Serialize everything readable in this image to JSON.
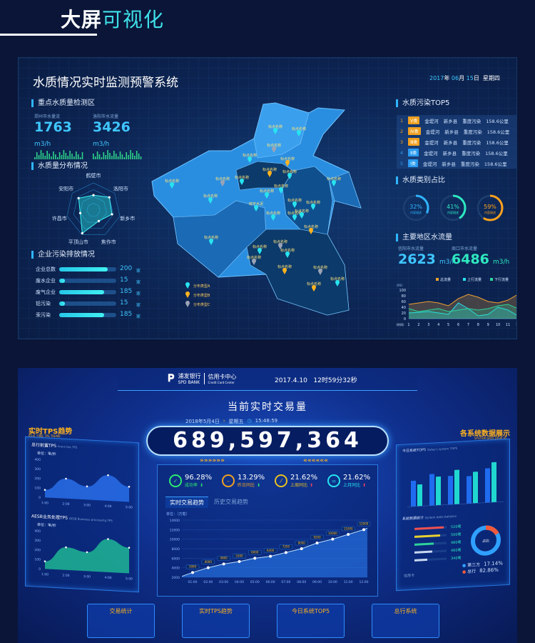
{
  "header": {
    "title_white": "大屏",
    "title_accent": "可视化"
  },
  "water": {
    "title": "水质情况实时监测预警系统",
    "date": {
      "year": "2017",
      "month": "06",
      "day": "15",
      "y_label": "年",
      "m_label": "月",
      "d_label": "日",
      "weekday": "星期四"
    },
    "monitor": {
      "section": "重点水质量检测区",
      "items": [
        {
          "label": "郑州市水量流",
          "value": "1763",
          "unit": "m3/h"
        },
        {
          "label": "洛阳市水流量",
          "value": "3426",
          "unit": "m3/h"
        }
      ]
    },
    "radar": {
      "section": "水质量分布情况",
      "axes": [
        "鹤壁市",
        "洛阳市",
        "新乡市",
        "焦作市",
        "平顶山市",
        "许昌市",
        "安阳市"
      ],
      "values": [
        0.55,
        0.75,
        0.7,
        0.45,
        0.95,
        0.5,
        0.7
      ]
    },
    "emission": {
      "section": "企业污染排放情况",
      "unit": "家",
      "items": [
        {
          "label": "企业总数",
          "value": 200
        },
        {
          "label": "废水企业",
          "value": 15
        },
        {
          "label": "废气企业",
          "value": 185
        },
        {
          "label": "铅污染",
          "value": 15
        },
        {
          "label": "汞污染",
          "value": 185
        }
      ]
    },
    "map": {
      "pins": [
        {
          "label": "标点名称",
          "type": "A"
        },
        {
          "label": "标点名称",
          "type": "A"
        },
        {
          "label": "标点名称",
          "type": "C"
        },
        {
          "label": "标点名称",
          "type": "A"
        },
        {
          "label": "标点名称",
          "type": "B"
        },
        {
          "label": "标点名称",
          "type": "B"
        },
        {
          "label": "标点名称",
          "type": "A"
        },
        {
          "label": "标点名称",
          "type": "A"
        },
        {
          "label": "标点名称",
          "type": "C"
        },
        {
          "label": "标点名称",
          "type": "A"
        },
        {
          "label": "标点名称",
          "type": "A"
        },
        {
          "label": "标点名称",
          "type": "A"
        },
        {
          "label": "标点名称",
          "type": "A"
        },
        {
          "label": "标点名称",
          "type": "A"
        },
        {
          "label": "晓宇水泥",
          "type": "A"
        },
        {
          "label": "标点名称",
          "type": "A"
        },
        {
          "label": "标点名称",
          "type": "A"
        },
        {
          "label": "标点名称",
          "type": "A"
        },
        {
          "label": "标点名称",
          "type": "A"
        },
        {
          "label": "标点名称",
          "type": "A"
        },
        {
          "label": "标点名称",
          "type": "B"
        },
        {
          "label": "标点名称",
          "type": "A"
        },
        {
          "label": "标点名称",
          "type": "A"
        },
        {
          "label": "标点名称",
          "type": "C"
        },
        {
          "label": "标点名称",
          "type": "A"
        },
        {
          "label": "标点名称",
          "type": "C"
        },
        {
          "label": "标点名称",
          "type": "B"
        },
        {
          "label": "标点名称",
          "type": "C"
        },
        {
          "label": "标点名称",
          "type": "B"
        },
        {
          "label": "标点名称",
          "type": "A"
        }
      ],
      "legend": [
        {
          "label": "分布类型A",
          "type": "A"
        },
        {
          "label": "分布类型B",
          "type": "B"
        },
        {
          "label": "分布类型C",
          "type": "C"
        }
      ],
      "colors": {
        "A": "#27e3f0",
        "B": "#ffb21e",
        "C": "#9aa3b5"
      }
    },
    "top5": {
      "section": "水质污染TOP5",
      "rows": [
        {
          "rank": "1",
          "grade": "V类",
          "river": "金堤河",
          "county": "新乡县",
          "level": "重度污染",
          "length": "158.6公里",
          "color": "#f0a020"
        },
        {
          "rank": "2",
          "grade": "Ⅳ类",
          "river": "金堤河",
          "county": "新乡县",
          "level": "重度污染",
          "length": "158.6公里",
          "color": "#f0a020"
        },
        {
          "rank": "3",
          "grade": "Ⅲ类",
          "river": "金堤河",
          "county": "新乡县",
          "level": "重度污染",
          "length": "158.6公里",
          "color": "#f0a020"
        },
        {
          "rank": "4",
          "grade": "Ⅱ类",
          "river": "金堤河",
          "county": "新乡县",
          "level": "重度污染",
          "length": "158.6公里",
          "color": "#2a9bf0"
        },
        {
          "rank": "5",
          "grade": "Ⅰ类",
          "river": "金堤河",
          "county": "新乡县",
          "level": "重度污染",
          "length": "158.6公里",
          "color": "#2a9bf0"
        }
      ]
    },
    "ratio": {
      "section": "水质类别占比",
      "items": [
        {
          "value": 32,
          "label": "32%",
          "desc": "内容描述",
          "color": "#2fb5ff"
        },
        {
          "value": 41,
          "label": "41%",
          "desc": "内容描述",
          "color": "#2ee8c0"
        },
        {
          "value": 59,
          "label": "59%",
          "desc": "内容描述",
          "color": "#ffa21e"
        }
      ]
    },
    "flow": {
      "section": "主要地区水流量",
      "items": [
        {
          "label": "信阳市水流量",
          "value": "2623",
          "unit": "m3/h",
          "color": "#3fc6ff"
        },
        {
          "label": "周口市水流量",
          "value": "6486",
          "unit": "m3/h",
          "color": "#2ee8c0"
        }
      ]
    },
    "chart_data": {
      "type": "area",
      "ylabel": "（MB）",
      "xlabel": "（时间）",
      "x": [
        1,
        2,
        3,
        4,
        5,
        6,
        7,
        8,
        9,
        10,
        11,
        12
      ],
      "ylim": [
        0,
        100
      ],
      "yticks": [
        0,
        20,
        40,
        60,
        80,
        100
      ],
      "legend": "top-right",
      "series": [
        {
          "name": "总流量",
          "color": "#f0a030",
          "values": [
            50,
            55,
            60,
            55,
            45,
            70,
            85,
            75,
            60,
            55,
            65,
            85
          ]
        },
        {
          "name": "上行流量",
          "color": "#27e3f0",
          "values": [
            20,
            22,
            25,
            20,
            15,
            55,
            35,
            10,
            15,
            40,
            30,
            10
          ]
        },
        {
          "name": "下行流量",
          "color": "#2ed39a",
          "values": [
            35,
            25,
            30,
            35,
            25,
            30,
            35,
            30,
            35,
            45,
            50,
            35
          ]
        }
      ]
    }
  },
  "bank": {
    "logo": {
      "cn": "浦发银行",
      "en": "SPD BANK",
      "dept_cn": "信用卡中心",
      "dept_en": "Credit Card Center"
    },
    "datetime": "2017.4.10   12时59分32秒",
    "title": "当前实时交易量",
    "subdate": "2018年5月4日",
    "weekday": "星期五",
    "time": "15:48:59",
    "counter": "689,597,364",
    "stats": [
      {
        "value": "96.28%",
        "label": "成功率",
        "dir": "down",
        "color": "#2ee870"
      },
      {
        "value": "13.29%",
        "label": "昨日同比",
        "dir": "down",
        "color": "#f0a020"
      },
      {
        "value": "21.62%",
        "label": "上周同比",
        "dir": "up",
        "color": "#e8c020"
      },
      {
        "value": "21.62%",
        "label": "上月同比",
        "dir": "up",
        "color": "#27e3f0"
      }
    ],
    "tabs": [
      "实时交易趋势",
      "历史交易趋势"
    ],
    "trend": {
      "type": "area",
      "ylabel": "单位：（万笔）",
      "categories": [
        "01:00",
        "02:00",
        "03:00",
        "04:00",
        "05:00",
        "06:00",
        "07:00",
        "08:00",
        "09:00",
        "10:00",
        "11:00",
        "12:00"
      ],
      "values": [
        3000,
        4000,
        4800,
        5300,
        6000,
        6400,
        7200,
        8000,
        9200,
        10000,
        11000,
        12000
      ],
      "ylim": [
        2000,
        14000
      ],
      "yticks": [
        2000,
        4000,
        6000,
        8000,
        10000,
        12000,
        14000
      ]
    },
    "left": {
      "title": "实时TPS趋势",
      "subtitle": "REAL-TIME TPS TREND",
      "charts": [
        {
          "name": "总行前置TPS",
          "en": "Front line TPS",
          "unit": "单位：笔/秒",
          "categories": [
            "1:00",
            "2:00",
            "3:00",
            "4:00",
            "5:00"
          ],
          "values": [
            80,
            210,
            140,
            270,
            160
          ],
          "ylim": [
            0,
            400
          ],
          "yticks": [
            0,
            100,
            200,
            300,
            400
          ],
          "color": "#2f7cff"
        },
        {
          "name": "AESB业务处理TPS",
          "en": "AESB Business processing TPS",
          "unit": "单位：笔/秒",
          "categories": [
            "1:00",
            "2:00",
            "3:00",
            "4:00",
            "5:00"
          ],
          "values": [
            80,
            240,
            200,
            350,
            270
          ],
          "ylim": [
            0,
            400
          ],
          "yticks": [
            0,
            100,
            200,
            300,
            400
          ],
          "color": "#22d39a"
        }
      ]
    },
    "right": {
      "title": "各系统数据展示",
      "subtitle": "SYSTEM DATA DISPLAY",
      "top5": "今日系统TOP5",
      "top5_en": "Today's system TOP5",
      "bars": {
        "type": "bar",
        "series": [
          {
            "color": "#1f6cf0",
            "values": [
              45,
              55,
              50,
              48,
              60
            ]
          },
          {
            "color": "#20d8d0",
            "values": [
              38,
              50,
              60,
              55,
              70
            ]
          }
        ]
      },
      "stats_title": "系统数据统计",
      "stats_en": "System data statistics",
      "progress": [
        {
          "value": "520笔",
          "pct": 0.9,
          "color": "#f05050"
        },
        {
          "value": "500笔",
          "pct": 0.8,
          "color": "#e8d030"
        },
        {
          "value": "480笔",
          "pct": 0.6,
          "color": "#2ed39a"
        },
        {
          "value": "460笔",
          "pct": 0.55,
          "color": "#c8d8f0"
        },
        {
          "value": "340笔",
          "pct": 0.4,
          "color": "#c8d8f0"
        }
      ],
      "donut_label": "占比",
      "legend": [
        {
          "label": "第三方",
          "value": "17.14%",
          "color": "#2fa0ff"
        },
        {
          "label": "总行",
          "value": "82.86%",
          "color": "#f05a3c"
        }
      ],
      "card_label": "信用卡"
    },
    "cards": [
      "交易统计",
      "实时TPS趋势",
      "今日系统TOP5",
      "总行系统"
    ]
  }
}
